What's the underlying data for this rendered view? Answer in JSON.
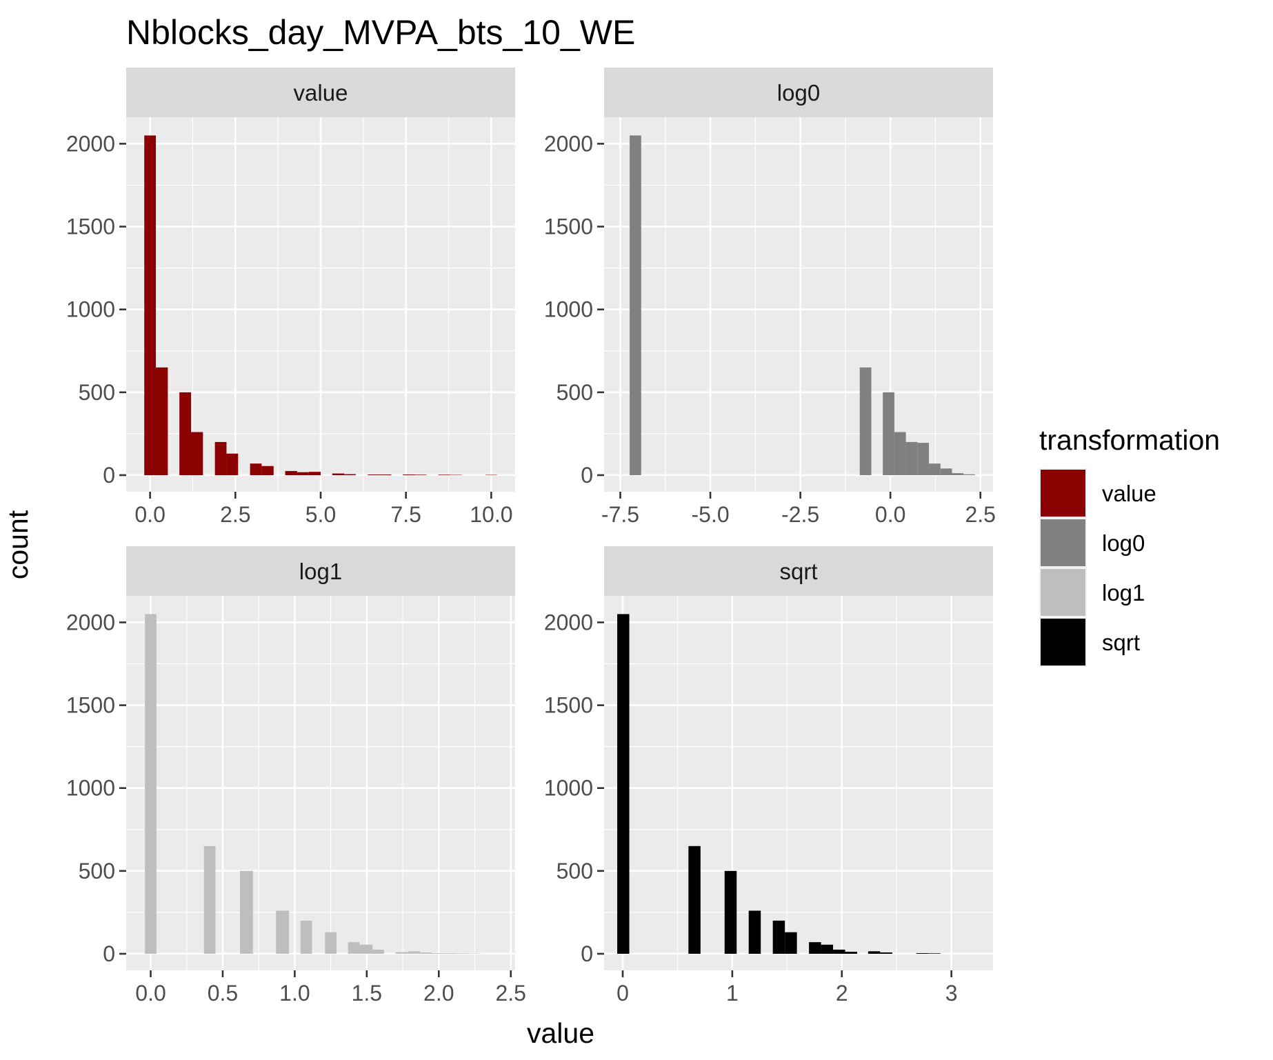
{
  "chart_data": {
    "type": "bar",
    "title": "Nblocks_day_MVPA_bts_10_WE",
    "xlabel": "value",
    "ylabel": "count",
    "grid": true,
    "legend": {
      "title": "transformation",
      "position": "right",
      "entries": [
        {
          "label": "value",
          "color": "#8B0000"
        },
        {
          "label": "log0",
          "color": "#808080"
        },
        {
          "label": "log1",
          "color": "#BEBEBE"
        },
        {
          "label": "sqrt",
          "color": "#000000"
        }
      ]
    },
    "panels": [
      {
        "strip": "value",
        "color": "#8B0000",
        "xlim": [
          -0.7,
          10.7
        ],
        "ylim": [
          -100,
          2160
        ],
        "x_ticks": [
          {
            "value": 0,
            "label": "0.0"
          },
          {
            "value": 2.5,
            "label": "2.5"
          },
          {
            "value": 5,
            "label": "5.0"
          },
          {
            "value": 7.5,
            "label": "7.5"
          },
          {
            "value": 10,
            "label": "10.0"
          }
        ],
        "y_ticks": [
          {
            "value": 0,
            "label": "0"
          },
          {
            "value": 500,
            "label": "500"
          },
          {
            "value": 1000,
            "label": "1000"
          },
          {
            "value": 1500,
            "label": "1500"
          },
          {
            "value": 2000,
            "label": "2000"
          }
        ],
        "bins": [
          {
            "x0": -0.17,
            "x1": 0.17,
            "count": 2050
          },
          {
            "x0": 0.17,
            "x1": 0.52,
            "count": 650
          },
          {
            "x0": 0.86,
            "x1": 1.2,
            "count": 500
          },
          {
            "x0": 1.2,
            "x1": 1.55,
            "count": 260
          },
          {
            "x0": 1.9,
            "x1": 2.24,
            "count": 200
          },
          {
            "x0": 2.24,
            "x1": 2.58,
            "count": 130
          },
          {
            "x0": 2.93,
            "x1": 3.27,
            "count": 70
          },
          {
            "x0": 3.27,
            "x1": 3.62,
            "count": 55
          },
          {
            "x0": 3.96,
            "x1": 4.31,
            "count": 25
          },
          {
            "x0": 4.31,
            "x1": 4.65,
            "count": 18
          },
          {
            "x0": 4.65,
            "x1": 5.0,
            "count": 20
          },
          {
            "x0": 5.34,
            "x1": 5.69,
            "count": 10
          },
          {
            "x0": 5.69,
            "x1": 6.03,
            "count": 6
          },
          {
            "x0": 6.38,
            "x1": 6.72,
            "count": 4
          },
          {
            "x0": 6.72,
            "x1": 7.07,
            "count": 4
          },
          {
            "x0": 7.41,
            "x1": 7.76,
            "count": 4
          },
          {
            "x0": 7.76,
            "x1": 8.1,
            "count": 3
          },
          {
            "x0": 8.45,
            "x1": 8.79,
            "count": 3
          },
          {
            "x0": 8.79,
            "x1": 9.14,
            "count": 2
          },
          {
            "x0": 9.83,
            "x1": 10.17,
            "count": 2
          }
        ]
      },
      {
        "strip": "log0",
        "color": "#808080",
        "xlim": [
          -7.95,
          2.85
        ],
        "ylim": [
          -100,
          2160
        ],
        "x_ticks": [
          {
            "value": -7.5,
            "label": "-7.5"
          },
          {
            "value": -5,
            "label": "-5.0"
          },
          {
            "value": -2.5,
            "label": "-2.5"
          },
          {
            "value": 0,
            "label": "0.0"
          },
          {
            "value": 2.5,
            "label": "2.5"
          }
        ],
        "y_ticks": [
          {
            "value": 0,
            "label": "0"
          },
          {
            "value": 500,
            "label": "500"
          },
          {
            "value": 1000,
            "label": "1000"
          },
          {
            "value": 1500,
            "label": "1500"
          },
          {
            "value": 2000,
            "label": "2000"
          }
        ],
        "bins": [
          {
            "x0": -7.24,
            "x1": -6.92,
            "count": 2050
          },
          {
            "x0": -0.85,
            "x1": -0.53,
            "count": 650
          },
          {
            "x0": -0.21,
            "x1": 0.11,
            "count": 500
          },
          {
            "x0": 0.11,
            "x1": 0.43,
            "count": 260
          },
          {
            "x0": 0.43,
            "x1": 0.75,
            "count": 200
          },
          {
            "x0": 0.75,
            "x1": 1.07,
            "count": 195
          },
          {
            "x0": 1.07,
            "x1": 1.39,
            "count": 70
          },
          {
            "x0": 1.39,
            "x1": 1.71,
            "count": 40
          },
          {
            "x0": 1.71,
            "x1": 2.03,
            "count": 12
          },
          {
            "x0": 2.03,
            "x1": 2.35,
            "count": 5
          }
        ]
      },
      {
        "strip": "log1",
        "color": "#BEBEBE",
        "xlim": [
          -0.17,
          2.53
        ],
        "ylim": [
          -100,
          2160
        ],
        "x_ticks": [
          {
            "value": 0,
            "label": "0.0"
          },
          {
            "value": 0.5,
            "label": "0.5"
          },
          {
            "value": 1,
            "label": "1.0"
          },
          {
            "value": 1.5,
            "label": "1.5"
          },
          {
            "value": 2,
            "label": "2.0"
          },
          {
            "value": 2.5,
            "label": "2.5"
          }
        ],
        "y_ticks": [
          {
            "value": 0,
            "label": "0"
          },
          {
            "value": 500,
            "label": "500"
          },
          {
            "value": 1000,
            "label": "1000"
          },
          {
            "value": 1500,
            "label": "1500"
          },
          {
            "value": 2000,
            "label": "2000"
          }
        ],
        "bins": [
          {
            "x0": -0.04,
            "x1": 0.04,
            "count": 2050
          },
          {
            "x0": 0.37,
            "x1": 0.45,
            "count": 650
          },
          {
            "x0": 0.62,
            "x1": 0.71,
            "count": 500
          },
          {
            "x0": 0.87,
            "x1": 0.96,
            "count": 260
          },
          {
            "x0": 1.04,
            "x1": 1.12,
            "count": 200
          },
          {
            "x0": 1.21,
            "x1": 1.29,
            "count": 130
          },
          {
            "x0": 1.37,
            "x1": 1.45,
            "count": 70
          },
          {
            "x0": 1.45,
            "x1": 1.54,
            "count": 55
          },
          {
            "x0": 1.54,
            "x1": 1.62,
            "count": 25
          },
          {
            "x0": 1.7,
            "x1": 1.79,
            "count": 10
          },
          {
            "x0": 1.79,
            "x1": 1.87,
            "count": 15
          },
          {
            "x0": 1.87,
            "x1": 1.95,
            "count": 8
          },
          {
            "x0": 1.95,
            "x1": 2.04,
            "count": 4
          },
          {
            "x0": 2.04,
            "x1": 2.12,
            "count": 4
          },
          {
            "x0": 2.12,
            "x1": 2.2,
            "count": 3
          },
          {
            "x0": 2.2,
            "x1": 2.29,
            "count": 2
          }
        ]
      },
      {
        "strip": "sqrt",
        "color": "#000000",
        "xlim": [
          -0.17,
          3.38
        ],
        "ylim": [
          -100,
          2160
        ],
        "x_ticks": [
          {
            "value": 0,
            "label": "0"
          },
          {
            "value": 1,
            "label": "1"
          },
          {
            "value": 2,
            "label": "2"
          },
          {
            "value": 3,
            "label": "3"
          }
        ],
        "y_ticks": [
          {
            "value": 0,
            "label": "0"
          },
          {
            "value": 500,
            "label": "500"
          },
          {
            "value": 1000,
            "label": "1000"
          },
          {
            "value": 1500,
            "label": "1500"
          },
          {
            "value": 2000,
            "label": "2000"
          }
        ],
        "bins": [
          {
            "x0": -0.05,
            "x1": 0.06,
            "count": 2050
          },
          {
            "x0": 0.6,
            "x1": 0.71,
            "count": 650
          },
          {
            "x0": 0.93,
            "x1": 1.04,
            "count": 500
          },
          {
            "x0": 1.15,
            "x1": 1.26,
            "count": 260
          },
          {
            "x0": 1.37,
            "x1": 1.48,
            "count": 200
          },
          {
            "x0": 1.48,
            "x1": 1.59,
            "count": 130
          },
          {
            "x0": 1.7,
            "x1": 1.81,
            "count": 70
          },
          {
            "x0": 1.81,
            "x1": 1.92,
            "count": 55
          },
          {
            "x0": 1.92,
            "x1": 2.03,
            "count": 25
          },
          {
            "x0": 2.03,
            "x1": 2.14,
            "count": 12
          },
          {
            "x0": 2.24,
            "x1": 2.35,
            "count": 15
          },
          {
            "x0": 2.35,
            "x1": 2.46,
            "count": 8
          },
          {
            "x0": 2.68,
            "x1": 2.79,
            "count": 4
          },
          {
            "x0": 2.79,
            "x1": 2.9,
            "count": 3
          }
        ]
      }
    ]
  }
}
